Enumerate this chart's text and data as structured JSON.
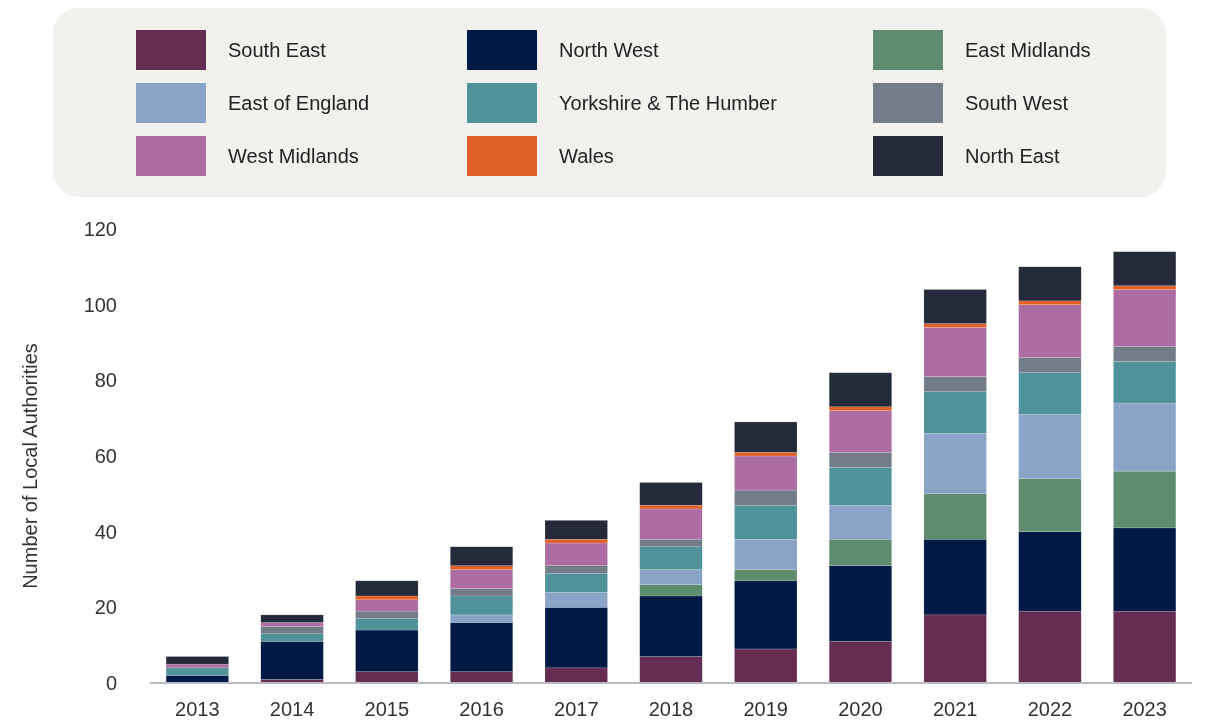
{
  "chart_data": {
    "type": "bar",
    "stacked": true,
    "ylabel": "Number of Local Authorities",
    "categories": [
      "2013",
      "2014",
      "2015",
      "2016",
      "2017",
      "2018",
      "2019",
      "2020",
      "2021",
      "2022",
      "2023"
    ],
    "ylim": [
      0,
      120
    ],
    "yticks": [
      0,
      20,
      40,
      60,
      80,
      100,
      120
    ],
    "grid": false,
    "legend": "top",
    "series": [
      {
        "name": "South East",
        "color": "#652d52",
        "values": [
          0,
          1,
          3,
          3,
          4,
          7,
          9,
          11,
          18,
          19,
          19
        ]
      },
      {
        "name": "North West",
        "color": "#011a45",
        "values": [
          2,
          10,
          11,
          13,
          16,
          16,
          18,
          20,
          20,
          21,
          22
        ]
      },
      {
        "name": "East Midlands",
        "color": "#5e8c6e",
        "values": [
          0,
          0,
          0,
          0,
          0,
          3,
          3,
          7,
          12,
          14,
          15
        ]
      },
      {
        "name": "East of England",
        "color": "#8aa4c8",
        "values": [
          0,
          0,
          0,
          2,
          4,
          4,
          8,
          9,
          16,
          17,
          18
        ]
      },
      {
        "name": "Yorkshire & The Humber",
        "color": "#4f929a",
        "values": [
          2,
          2,
          3,
          5,
          5,
          6,
          9,
          10,
          11,
          11,
          11
        ]
      },
      {
        "name": "South West",
        "color": "#727d89",
        "values": [
          0,
          2,
          2,
          2,
          2,
          2,
          4,
          4,
          4,
          4,
          4
        ]
      },
      {
        "name": "West Midlands",
        "color": "#ad6da2",
        "values": [
          1,
          1,
          3,
          5,
          6,
          8,
          9,
          11,
          13,
          14,
          15
        ]
      },
      {
        "name": "Wales",
        "color": "#e06028",
        "values": [
          0,
          0,
          1,
          1,
          1,
          1,
          1,
          1,
          1,
          1,
          1
        ]
      },
      {
        "name": "North East",
        "color": "#252a3b",
        "values": [
          2,
          2,
          4,
          5,
          5,
          6,
          8,
          9,
          9,
          9,
          9
        ]
      }
    ]
  }
}
